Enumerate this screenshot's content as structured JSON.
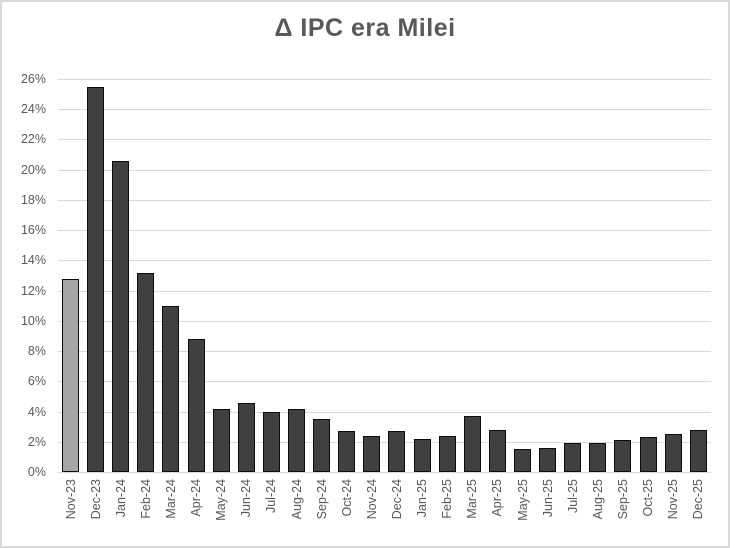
{
  "chart_data": {
    "type": "bar",
    "title": "Δ IPC era Milei",
    "xlabel": "",
    "ylabel": "",
    "unit": "%",
    "ylim": [
      0,
      26
    ],
    "y_tick_step": 2,
    "y_tick_labels": [
      "0%",
      "2%",
      "4%",
      "6%",
      "8%",
      "10%",
      "12%",
      "14%",
      "16%",
      "18%",
      "20%",
      "22%",
      "24%",
      "26%"
    ],
    "grid": true,
    "legend": "none",
    "categories": [
      "Nov-23",
      "Dec-23",
      "Jan-24",
      "Feb-24",
      "Mar-24",
      "Apr-24",
      "May-24",
      "Jun-24",
      "Jul-24",
      "Aug-24",
      "Sep-24",
      "Oct-24",
      "Nov-24",
      "Dec-24",
      "Jan-25",
      "Feb-25",
      "Mar-25",
      "Apr-25",
      "May-25",
      "Jun-25",
      "Jul-25",
      "Aug-25",
      "Sep-25",
      "Oct-25",
      "Nov-25",
      "Dec-25"
    ],
    "values": [
      12.8,
      25.5,
      20.6,
      13.2,
      11.0,
      8.8,
      4.2,
      4.6,
      4.0,
      4.2,
      3.5,
      2.7,
      2.4,
      2.7,
      2.2,
      2.4,
      3.7,
      2.8,
      1.5,
      1.6,
      1.9,
      1.9,
      2.1,
      2.3,
      2.5,
      2.8
    ],
    "highlight_index": 0,
    "colors": {
      "bar_fill": "#404040",
      "bar_highlight_fill": "#a6a6a6",
      "bar_border": "#0d0d0d",
      "gridline": "#d9d9d9",
      "axis_label": "#595959",
      "title": "#595959",
      "frame_border": "#d9d9d9",
      "background": "#ffffff"
    }
  }
}
